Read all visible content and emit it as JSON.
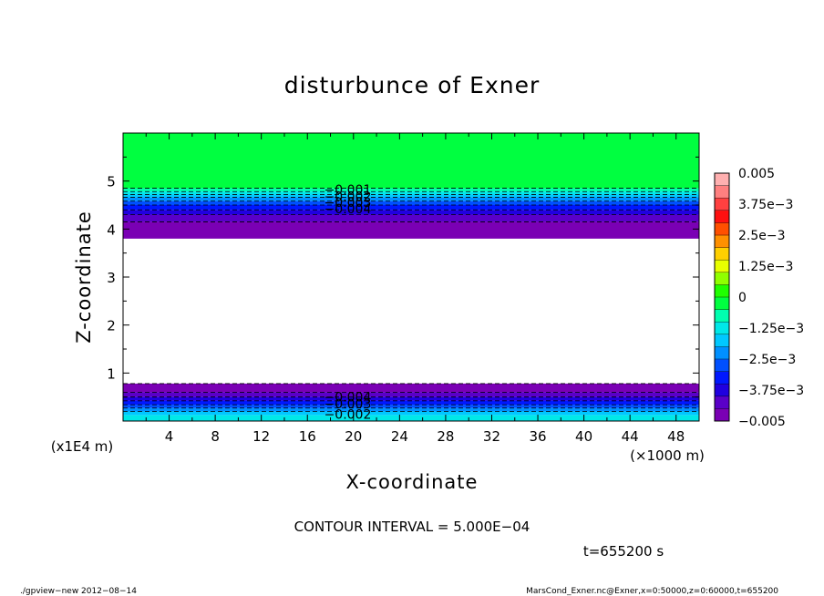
{
  "chart_data": {
    "type": "contour",
    "title": "disturbunce of Exner",
    "xlabel": "X-coordinate",
    "ylabel": "Z-coordinate",
    "x_unit_label": "(×1000 m)",
    "y_unit_label": "(x1E4 m)",
    "xlim": [
      0,
      50
    ],
    "ylim": [
      0,
      6
    ],
    "x_ticks": [
      4,
      8,
      12,
      16,
      20,
      24,
      28,
      32,
      36,
      40,
      44,
      48
    ],
    "y_ticks": [
      1,
      2,
      3,
      4,
      5
    ],
    "colorbar": {
      "min": -0.005,
      "max": 0.005,
      "labels": [
        "0.005",
        "3.75e−3",
        "2.5e−3",
        "1.25e−3",
        "0",
        "−1.25e−3",
        "−2.5e−3",
        "−3.75e−3",
        "−0.005"
      ],
      "colors": [
        "#7a00b4",
        "#5a00c8",
        "#2000e0",
        "#0018ff",
        "#0050ff",
        "#0090ff",
        "#00c8ff",
        "#00e8e8",
        "#00ffb0",
        "#00ff40",
        "#20ff00",
        "#90ff00",
        "#e8ff00",
        "#ffd000",
        "#ff9000",
        "#ff5000",
        "#ff1010",
        "#ff4040",
        "#ff8080",
        "#ffb0b0"
      ]
    },
    "bands": [
      {
        "level": -0.0005,
        "z_bottom": 4.85,
        "z_top": 6.0
      },
      {
        "level": -0.001,
        "z_bottom": 4.78,
        "z_top": 4.85
      },
      {
        "level": -0.0015,
        "z_bottom": 4.72,
        "z_top": 4.78
      },
      {
        "level": -0.002,
        "z_bottom": 4.66,
        "z_top": 4.72
      },
      {
        "level": -0.0025,
        "z_bottom": 4.58,
        "z_top": 4.66
      },
      {
        "level": -0.003,
        "z_bottom": 4.5,
        "z_top": 4.58
      },
      {
        "level": -0.0035,
        "z_bottom": 4.4,
        "z_top": 4.5
      },
      {
        "level": -0.004,
        "z_bottom": 4.3,
        "z_top": 4.4
      },
      {
        "level": -0.0045,
        "z_bottom": 4.15,
        "z_top": 4.3
      },
      {
        "level": -0.005,
        "z_bottom": 3.8,
        "z_top": 4.15
      },
      {
        "level": -0.005,
        "z_bottom": 0.6,
        "z_top": 0.78
      },
      {
        "level": -0.0045,
        "z_bottom": 0.5,
        "z_top": 0.6
      },
      {
        "level": -0.004,
        "z_bottom": 0.42,
        "z_top": 0.5
      },
      {
        "level": -0.0035,
        "z_bottom": 0.34,
        "z_top": 0.42
      },
      {
        "level": -0.003,
        "z_bottom": 0.27,
        "z_top": 0.34
      },
      {
        "level": -0.0025,
        "z_bottom": 0.2,
        "z_top": 0.27
      },
      {
        "level": -0.002,
        "z_bottom": 0.12,
        "z_top": 0.2
      },
      {
        "level": -0.0015,
        "z_bottom": 0.0,
        "z_top": 0.12
      }
    ],
    "contour_labels": [
      {
        "text": "−0.001",
        "x": 19.5,
        "z": 4.82
      },
      {
        "text": "−0.002",
        "x": 19.5,
        "z": 4.68
      },
      {
        "text": "−0.003",
        "x": 19.5,
        "z": 4.56
      },
      {
        "text": "−0.004",
        "x": 19.5,
        "z": 4.42
      },
      {
        "text": "−0.004",
        "x": 19.5,
        "z": 0.5
      },
      {
        "text": "−0.003",
        "x": 19.5,
        "z": 0.36
      },
      {
        "text": "−0.002",
        "x": 19.5,
        "z": 0.14
      }
    ],
    "contour_interval_text": "CONTOUR INTERVAL = 5.000E−04",
    "time_text": "t=655200 s"
  },
  "footer": {
    "left": "./gpview−new   2012−08−14",
    "right": "MarsCond_Exner.nc@Exner,x=0:50000,z=0:60000,t=655200"
  }
}
